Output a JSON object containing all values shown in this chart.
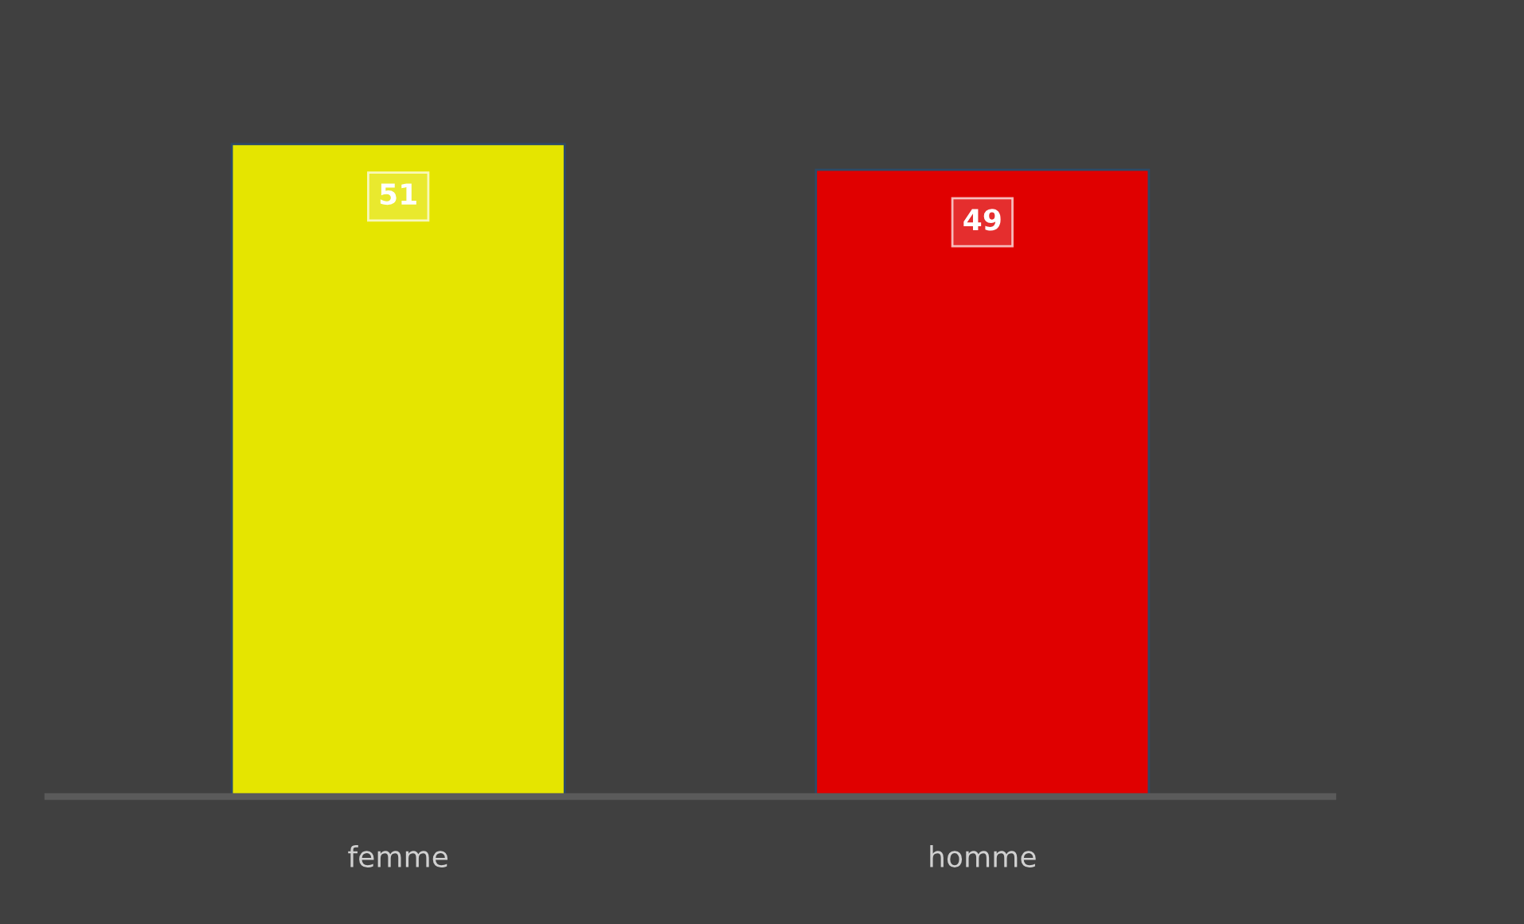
{
  "chart_data": {
    "type": "bar",
    "categories": [
      "femme",
      "homme"
    ],
    "values": [
      51,
      49
    ],
    "colors": [
      "#e5e500",
      "#e00000"
    ],
    "data_labels": true,
    "tick_labels": "x",
    "grid": false,
    "legend": false
  }
}
